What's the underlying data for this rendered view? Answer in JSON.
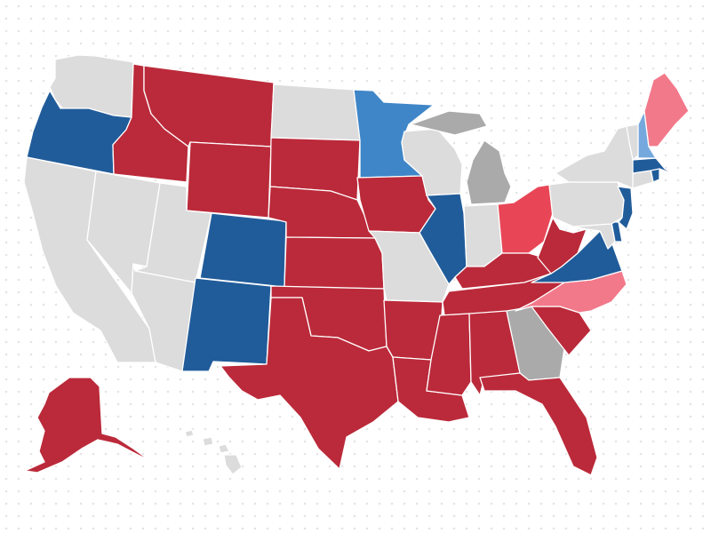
{
  "colors": {
    "background": "#ffffff",
    "dot_pattern": "#e4e4e4",
    "solid_democrat": "#215c9a",
    "likely_democrat": "#3f86c8",
    "lean_democrat": "#75a8dd",
    "solid_republican": "#bb2a3a",
    "likely_republican": "#e84656",
    "lean_republican": "#f2798a",
    "toss_up": "#aaaaaa",
    "no_race": "#dcdcdc",
    "border": "#ffffff"
  },
  "states": [
    {
      "code": "WA",
      "category": "no_race"
    },
    {
      "code": "OR",
      "category": "solid_democrat"
    },
    {
      "code": "CA",
      "category": "no_race"
    },
    {
      "code": "NV",
      "category": "no_race"
    },
    {
      "code": "ID",
      "category": "solid_republican"
    },
    {
      "code": "MT",
      "category": "solid_republican"
    },
    {
      "code": "WY",
      "category": "solid_republican"
    },
    {
      "code": "UT",
      "category": "no_race"
    },
    {
      "code": "AZ",
      "category": "no_race"
    },
    {
      "code": "CO",
      "category": "solid_democrat"
    },
    {
      "code": "NM",
      "category": "solid_democrat"
    },
    {
      "code": "ND",
      "category": "no_race"
    },
    {
      "code": "SD",
      "category": "solid_republican"
    },
    {
      "code": "NE",
      "category": "solid_republican"
    },
    {
      "code": "KS",
      "category": "solid_republican"
    },
    {
      "code": "OK",
      "category": "solid_republican"
    },
    {
      "code": "TX",
      "category": "solid_republican"
    },
    {
      "code": "MN",
      "category": "likely_democrat"
    },
    {
      "code": "IA",
      "category": "solid_republican"
    },
    {
      "code": "MO",
      "category": "no_race"
    },
    {
      "code": "AR",
      "category": "solid_republican"
    },
    {
      "code": "LA",
      "category": "solid_republican"
    },
    {
      "code": "WI",
      "category": "no_race"
    },
    {
      "code": "IL",
      "category": "solid_democrat"
    },
    {
      "code": "MI",
      "category": "toss_up"
    },
    {
      "code": "IN",
      "category": "no_race"
    },
    {
      "code": "OH",
      "category": "likely_republican"
    },
    {
      "code": "KY",
      "category": "solid_republican"
    },
    {
      "code": "TN",
      "category": "solid_republican"
    },
    {
      "code": "MS",
      "category": "solid_republican"
    },
    {
      "code": "AL",
      "category": "solid_republican"
    },
    {
      "code": "GA",
      "category": "toss_up"
    },
    {
      "code": "FL",
      "category": "solid_republican"
    },
    {
      "code": "SC",
      "category": "solid_republican"
    },
    {
      "code": "NC",
      "category": "lean_republican"
    },
    {
      "code": "VA",
      "category": "solid_democrat"
    },
    {
      "code": "WV",
      "category": "solid_republican"
    },
    {
      "code": "PA",
      "category": "no_race"
    },
    {
      "code": "NY",
      "category": "no_race"
    },
    {
      "code": "VT",
      "category": "no_race"
    },
    {
      "code": "NH",
      "category": "lean_democrat"
    },
    {
      "code": "ME",
      "category": "lean_republican"
    },
    {
      "code": "MA",
      "category": "solid_democrat"
    },
    {
      "code": "RI",
      "category": "solid_democrat"
    },
    {
      "code": "CT",
      "category": "no_race"
    },
    {
      "code": "NJ",
      "category": "solid_democrat"
    },
    {
      "code": "DE",
      "category": "solid_democrat"
    },
    {
      "code": "MD",
      "category": "no_race"
    },
    {
      "code": "AK",
      "category": "solid_republican"
    },
    {
      "code": "HI",
      "category": "no_race"
    }
  ]
}
